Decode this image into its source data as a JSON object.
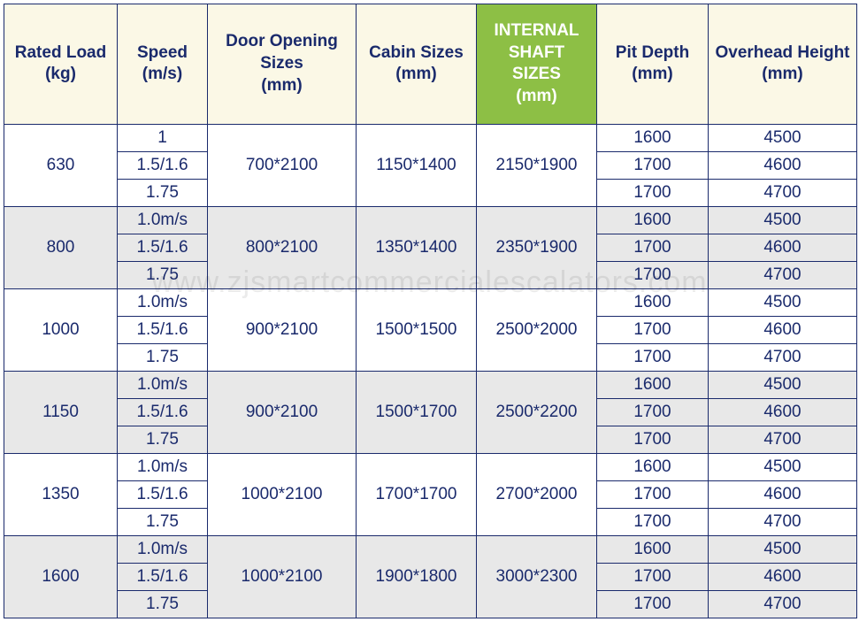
{
  "table": {
    "columns": [
      {
        "label": "Rated Load\n(kg)",
        "highlight": false
      },
      {
        "label": "Speed\n(m/s)",
        "highlight": false
      },
      {
        "label": "Door Opening\nSizes\n(mm)",
        "highlight": false
      },
      {
        "label": "Cabin Sizes\n(mm)",
        "highlight": false
      },
      {
        "label": "INTERNAL\nSHAFT\nSIZES\n(mm)",
        "highlight": true
      },
      {
        "label": "Pit Depth\n(mm)",
        "highlight": false
      },
      {
        "label": "Overhead Height\n(mm)",
        "highlight": false
      }
    ],
    "groups": [
      {
        "rated_load": "630",
        "alt": false,
        "door": "700*2100",
        "cabin": "1150*1400",
        "shaft": "2150*1900",
        "rows": [
          {
            "speed": "1",
            "pit": "1600",
            "oh": "4500"
          },
          {
            "speed": "1.5/1.6",
            "pit": "1700",
            "oh": "4600"
          },
          {
            "speed": "1.75",
            "pit": "1700",
            "oh": "4700"
          }
        ]
      },
      {
        "rated_load": "800",
        "alt": true,
        "door": "800*2100",
        "cabin": "1350*1400",
        "shaft": "2350*1900",
        "rows": [
          {
            "speed": "1.0m/s",
            "pit": "1600",
            "oh": "4500"
          },
          {
            "speed": "1.5/1.6",
            "pit": "1700",
            "oh": "4600"
          },
          {
            "speed": "1.75",
            "pit": "1700",
            "oh": "4700"
          }
        ]
      },
      {
        "rated_load": "1000",
        "alt": false,
        "door": "900*2100",
        "cabin": "1500*1500",
        "shaft": "2500*2000",
        "rows": [
          {
            "speed": "1.0m/s",
            "pit": "1600",
            "oh": "4500"
          },
          {
            "speed": "1.5/1.6",
            "pit": "1700",
            "oh": "4600"
          },
          {
            "speed": "1.75",
            "pit": "1700",
            "oh": "4700"
          }
        ]
      },
      {
        "rated_load": "1150",
        "alt": true,
        "door": "900*2100",
        "cabin": "1500*1700",
        "shaft": "2500*2200",
        "rows": [
          {
            "speed": "1.0m/s",
            "pit": "1600",
            "oh": "4500"
          },
          {
            "speed": "1.5/1.6",
            "pit": "1700",
            "oh": "4600"
          },
          {
            "speed": "1.75",
            "pit": "1700",
            "oh": "4700"
          }
        ]
      },
      {
        "rated_load": "1350",
        "alt": false,
        "door": "1000*2100",
        "cabin": "1700*1700",
        "shaft": "2700*2000",
        "rows": [
          {
            "speed": "1.0m/s",
            "pit": "1600",
            "oh": "4500"
          },
          {
            "speed": "1.5/1.6",
            "pit": "1700",
            "oh": "4600"
          },
          {
            "speed": "1.75",
            "pit": "1700",
            "oh": "4700"
          }
        ]
      },
      {
        "rated_load": "1600",
        "alt": true,
        "door": "1000*2100",
        "cabin": "1900*1800",
        "shaft": "3000*2300",
        "rows": [
          {
            "speed": "1.0m/s",
            "pit": "1600",
            "oh": "4500"
          },
          {
            "speed": "1.5/1.6",
            "pit": "1700",
            "oh": "4600"
          },
          {
            "speed": "1.75",
            "pit": "1700",
            "oh": "4700"
          }
        ]
      }
    ],
    "border_color": "#1a2a6c",
    "header_bg": "#fbf8e6",
    "highlight_bg": "#8dbf45",
    "alt_row_bg": "#e8e8e8",
    "plain_row_bg": "#ffffff",
    "text_color": "#1a2a6c",
    "font_size_header": 19,
    "font_size_cell": 19
  },
  "watermark": "www.zjsmartcommercialescalators.com"
}
